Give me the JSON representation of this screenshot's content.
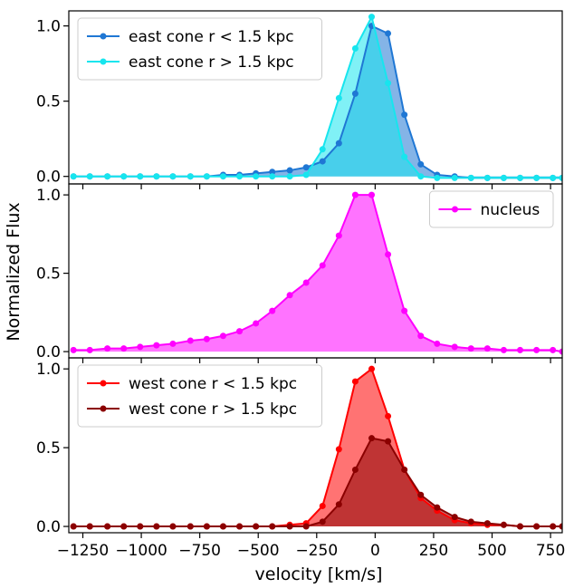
{
  "chart_data": {
    "type": "line",
    "title": "",
    "xlabel": "velocity [km/s]",
    "ylabel": "Normalized Flux",
    "xlim": [
      -1310,
      800
    ],
    "xticks": [
      -1250,
      -1000,
      -750,
      -500,
      -250,
      0,
      250,
      500,
      750
    ],
    "xtick_labels": [
      "−1250",
      "−1000",
      "−750",
      "−500",
      "−250",
      "0",
      "250",
      "500",
      "750"
    ],
    "panels": [
      {
        "name": "east",
        "ylim": [
          -0.05,
          1.1
        ],
        "yticks": [
          0.0,
          0.5,
          1.0
        ],
        "ytick_labels": [
          "0.0",
          "0.5",
          "1.0"
        ],
        "legend_loc": "upper-left",
        "series": [
          {
            "name": "east cone r < 1.5 kpc",
            "color": "#1f77d4",
            "fill": "#1f77d4",
            "x": [
              -1290,
              -1220,
              -1145,
              -1075,
              -1005,
              -935,
              -865,
              -790,
              -720,
              -650,
              -580,
              -510,
              -440,
              -365,
              -295,
              -225,
              -155,
              -85,
              -15,
              55,
              125,
              195,
              265,
              340,
              410,
              480,
              550,
              620,
              690,
              760,
              800
            ],
            "y": [
              0,
              0,
              0,
              0,
              0,
              0,
              0,
              0,
              0,
              0.01,
              0.01,
              0.02,
              0.03,
              0.04,
              0.06,
              0.1,
              0.22,
              0.55,
              1.0,
              0.95,
              0.41,
              0.08,
              0.01,
              0,
              -0.01,
              -0.01,
              -0.01,
              -0.01,
              -0.01,
              -0.01,
              -0.01
            ]
          },
          {
            "name": "east cone r > 1.5 kpc",
            "color": "#17e5ee",
            "fill": "#17e5ee",
            "x": [
              -1290,
              -1220,
              -1145,
              -1075,
              -1005,
              -935,
              -865,
              -790,
              -720,
              -650,
              -580,
              -510,
              -440,
              -365,
              -295,
              -225,
              -155,
              -85,
              -15,
              55,
              125,
              195,
              265,
              340,
              410,
              480,
              550,
              620,
              690,
              760,
              800
            ],
            "y": [
              0,
              0,
              0,
              0,
              0,
              0,
              0,
              0,
              0,
              0,
              0,
              0,
              0,
              0,
              0.01,
              0.18,
              0.52,
              0.85,
              1.06,
              0.62,
              0.13,
              0.0,
              -0.01,
              -0.01,
              -0.01,
              -0.01,
              -0.01,
              -0.01,
              -0.01,
              -0.01,
              -0.01
            ]
          }
        ]
      },
      {
        "name": "nucleus",
        "ylim": [
          -0.04,
          1.07
        ],
        "yticks": [
          0.0,
          0.5,
          1.0
        ],
        "ytick_labels": [
          "0.0",
          "0.5",
          "1.0"
        ],
        "legend_loc": "upper-right",
        "series": [
          {
            "name": "nucleus",
            "color": "#ff00ff",
            "fill": "#ff00ff",
            "x": [
              -1290,
              -1220,
              -1145,
              -1075,
              -1005,
              -935,
              -865,
              -790,
              -720,
              -650,
              -580,
              -510,
              -440,
              -365,
              -295,
              -225,
              -155,
              -85,
              -15,
              55,
              125,
              195,
              265,
              340,
              410,
              480,
              550,
              620,
              690,
              760,
              800
            ],
            "y": [
              0.01,
              0.01,
              0.02,
              0.02,
              0.03,
              0.04,
              0.05,
              0.07,
              0.08,
              0.1,
              0.13,
              0.18,
              0.26,
              0.36,
              0.44,
              0.55,
              0.74,
              1.0,
              1.0,
              0.62,
              0.26,
              0.1,
              0.05,
              0.03,
              0.02,
              0.02,
              0.01,
              0.01,
              0.01,
              0.01,
              0.0
            ]
          }
        ]
      },
      {
        "name": "west",
        "ylim": [
          -0.04,
          1.07
        ],
        "yticks": [
          0.0,
          0.5,
          1.0
        ],
        "ytick_labels": [
          "0.0",
          "0.5",
          "1.0"
        ],
        "legend_loc": "upper-left",
        "series": [
          {
            "name": "west cone r < 1.5 kpc",
            "color": "#ff0000",
            "fill": "#ff0000",
            "x": [
              -1290,
              -1220,
              -1145,
              -1075,
              -1005,
              -935,
              -865,
              -790,
              -720,
              -650,
              -580,
              -510,
              -440,
              -365,
              -295,
              -225,
              -155,
              -85,
              -15,
              55,
              125,
              195,
              265,
              340,
              410,
              480,
              550,
              620,
              690,
              760,
              800
            ],
            "y": [
              0,
              0,
              0,
              0,
              0,
              0,
              0,
              0,
              0,
              0,
              0,
              0,
              0,
              0.01,
              0.02,
              0.13,
              0.49,
              0.92,
              1.0,
              0.7,
              0.36,
              0.18,
              0.1,
              0.04,
              0.02,
              0.01,
              0.01,
              0.0,
              0.0,
              0.0,
              0.0
            ]
          },
          {
            "name": "west cone r > 1.5 kpc",
            "color": "#8b0000",
            "fill": "#8b0000",
            "x": [
              -1290,
              -1220,
              -1145,
              -1075,
              -1005,
              -935,
              -865,
              -790,
              -720,
              -650,
              -580,
              -510,
              -440,
              -365,
              -295,
              -225,
              -155,
              -85,
              -15,
              55,
              125,
              195,
              265,
              340,
              410,
              480,
              550,
              620,
              690,
              760,
              800
            ],
            "y": [
              0,
              0,
              0,
              0,
              0,
              0,
              0,
              0,
              0,
              0,
              0,
              0,
              0,
              0,
              0.0,
              0.03,
              0.14,
              0.36,
              0.56,
              0.54,
              0.36,
              0.2,
              0.12,
              0.06,
              0.03,
              0.02,
              0.01,
              0.0,
              0.0,
              0.0,
              0.0
            ]
          }
        ]
      }
    ]
  }
}
